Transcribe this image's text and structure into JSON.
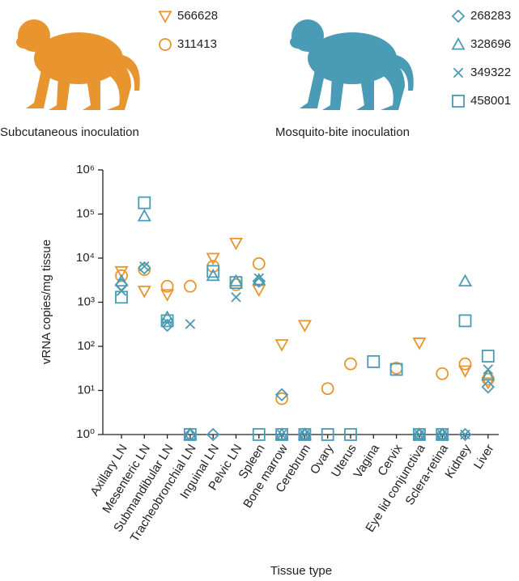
{
  "chart_data": {
    "type": "scatter",
    "y_label": "vRNA copies/mg tissue",
    "x_label": "Tissue type",
    "log_y": true,
    "ylim": [
      1,
      1000000
    ],
    "yticks": [
      {
        "value": 1,
        "label": "10⁰"
      },
      {
        "value": 10,
        "label": "10¹"
      },
      {
        "value": 100,
        "label": "10²"
      },
      {
        "value": 1000,
        "label": "10³"
      },
      {
        "value": 10000,
        "label": "10⁴"
      },
      {
        "value": 100000,
        "label": "10⁵"
      },
      {
        "value": 1000000,
        "label": "10⁶"
      }
    ],
    "categories": [
      "Axillary LN",
      "Mesenteric LN",
      "Submandibular LN",
      "Tracheobronchial LN",
      "Inguinal LN",
      "Pelvic LN",
      "Spleen",
      "Bone marrow",
      "Cerebrum",
      "Ovary",
      "Uterus",
      "Vagina",
      "Cervix",
      "Eye lid conjunctiva",
      "Sclera-retina",
      "Kidney",
      "Liver"
    ],
    "legend_groups": [
      {
        "label": "Subcutaneous inoculation",
        "color": "#e8952f"
      },
      {
        "label": "Mosquito-bite inoculation",
        "color": "#4a9bb5"
      }
    ],
    "series": [
      {
        "name": "566628",
        "color": "#e8952f",
        "marker": "triangle-down",
        "values": [
          5000,
          1800,
          1500,
          null,
          10000,
          22000,
          1900,
          110,
          300,
          null,
          null,
          null,
          null,
          120,
          null,
          28,
          15
        ]
      },
      {
        "name": "311413",
        "color": "#e8952f",
        "marker": "circle",
        "values": [
          4000,
          5500,
          2300,
          2300,
          6500,
          2500,
          7500,
          6.5,
          null,
          11,
          40,
          null,
          32,
          null,
          24,
          40,
          18
        ]
      },
      {
        "name": "268283",
        "color": "#4a9bb5",
        "marker": "diamond",
        "values": [
          2500,
          6000,
          300,
          1,
          1,
          null,
          3000,
          8,
          1,
          null,
          null,
          null,
          null,
          1,
          1,
          1,
          12
        ]
      },
      {
        "name": "328696",
        "color": "#4a9bb5",
        "marker": "triangle-up",
        "values": [
          3000,
          90000,
          450,
          1,
          4000,
          3000,
          3200,
          1,
          1,
          null,
          null,
          null,
          null,
          1,
          1,
          3000,
          22
        ]
      },
      {
        "name": "349322",
        "color": "#4a9bb5",
        "marker": "x",
        "values": [
          1800,
          6500,
          350,
          320,
          null,
          1300,
          3500,
          1,
          1,
          null,
          null,
          null,
          null,
          1,
          1,
          1,
          30
        ]
      },
      {
        "name": "458001",
        "color": "#4a9bb5",
        "marker": "square",
        "values": [
          1300,
          180000,
          380,
          1,
          5000,
          2800,
          1,
          1,
          1,
          1,
          1,
          45,
          30,
          1,
          1,
          380,
          60
        ]
      }
    ]
  }
}
